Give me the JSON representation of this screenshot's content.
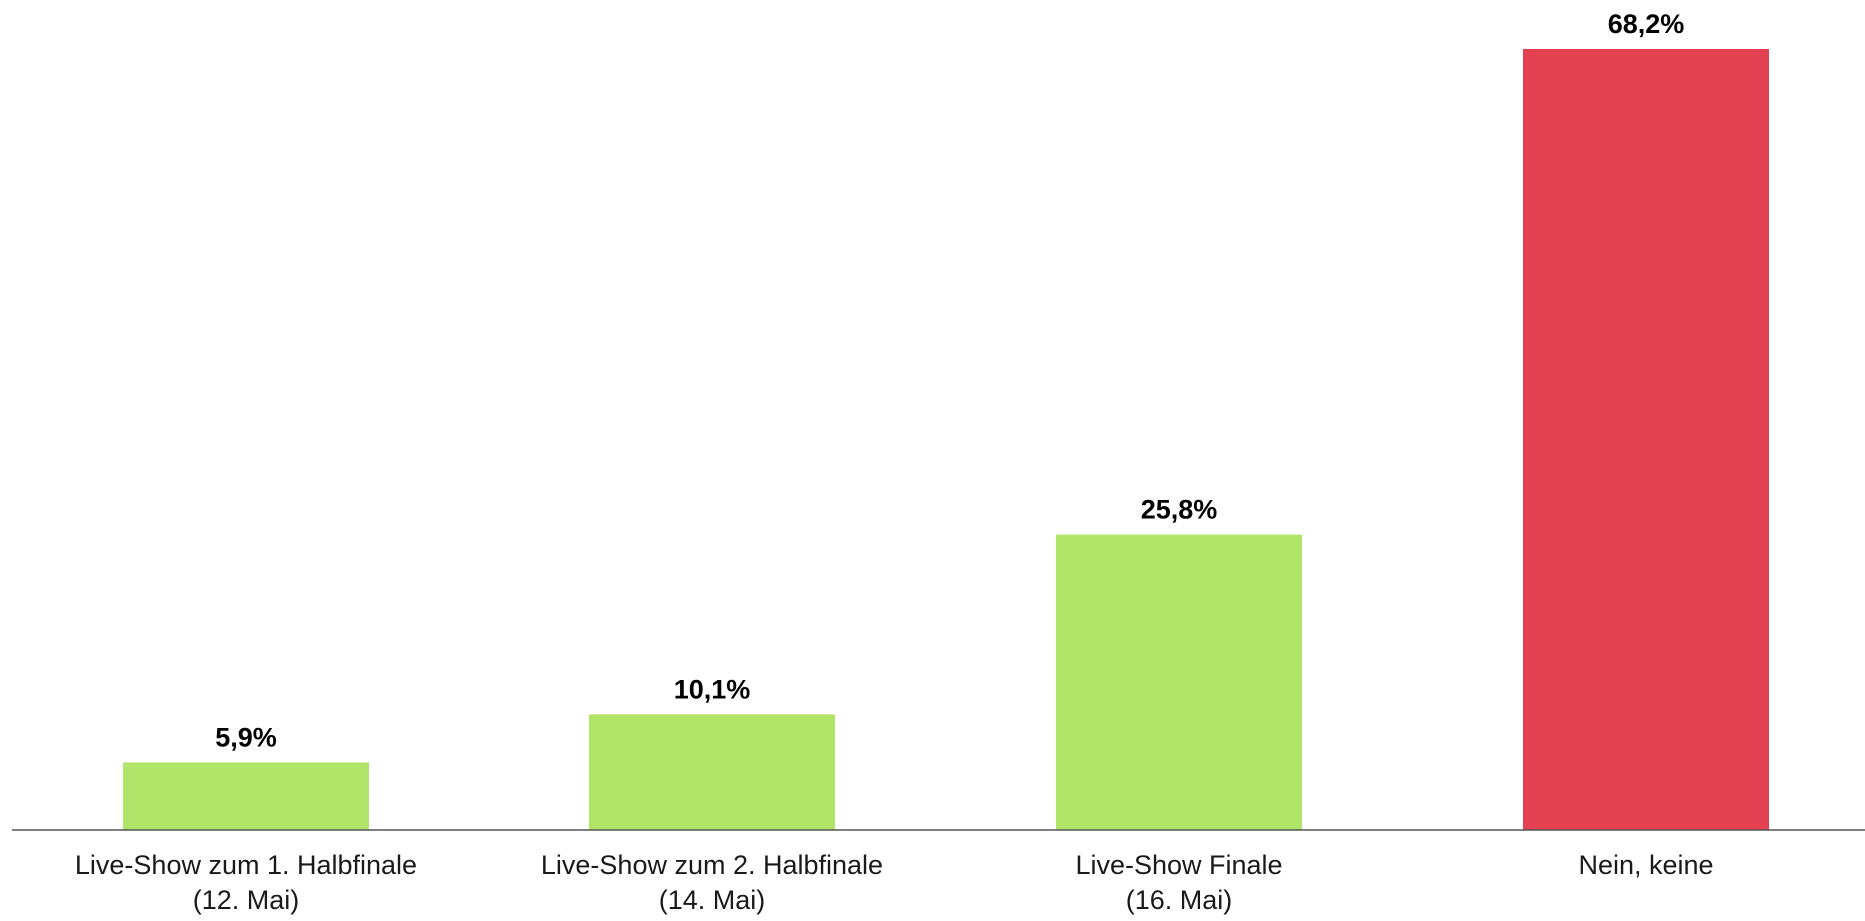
{
  "chart_data": {
    "type": "bar",
    "categories": [
      [
        "Live-Show zum 1. Halbfinale",
        "(12. Mai)"
      ],
      [
        "Live-Show zum 2. Halbfinale",
        "(14. Mai)"
      ],
      [
        "Live-Show Finale",
        "(16. Mai)"
      ],
      [
        "Nein, keine"
      ]
    ],
    "values": [
      5.9,
      10.1,
      25.8,
      68.2
    ],
    "value_labels": [
      "5,9%",
      "10,1%",
      "25,8%",
      "68,2%"
    ],
    "colors": [
      "#b1e56a",
      "#b1e56a",
      "#b1e56a",
      "#e34152"
    ],
    "axis_color": "#555555",
    "title": "",
    "xlabel": "",
    "ylabel": "",
    "ylim": [
      0,
      68.2
    ],
    "grid": false
  }
}
